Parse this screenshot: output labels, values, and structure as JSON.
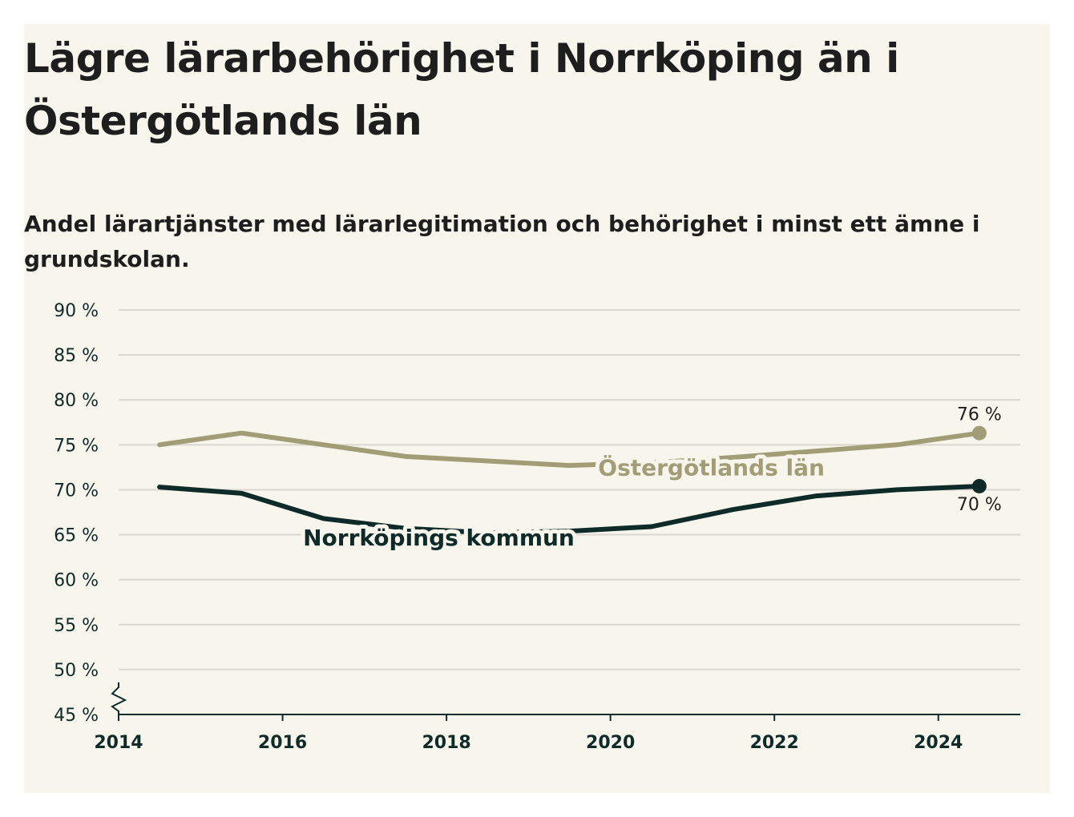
{
  "title": "Lägre lärarbehörighet i Norrköping än i Östergötlands län",
  "subtitle": "Andel lärartjänster med lärarlegitimation och behörighet i minst ett ämne i grundskolan.",
  "colors": {
    "background": "#f8f6ec",
    "grid": "#d9d7cf",
    "axis": "#0e2b2a",
    "norrkoping": "#0e2b2a",
    "ostergotland": "#a29d77"
  },
  "chart_data": {
    "type": "line",
    "xlim": [
      2014,
      2025
    ],
    "ylim": [
      45,
      90
    ],
    "y_axis_break": true,
    "x_ticks": [
      2014,
      2016,
      2018,
      2020,
      2022,
      2024
    ],
    "x_tick_labels": [
      "2014",
      "2016",
      "2018",
      "2020",
      "2022",
      "2024"
    ],
    "y_ticks": [
      45,
      50,
      55,
      60,
      65,
      70,
      75,
      80,
      85,
      90
    ],
    "y_tick_labels": [
      "45 %",
      "50 %",
      "55 %",
      "60 %",
      "65 %",
      "70 %",
      "75 %",
      "80 %",
      "85 %",
      "90 %"
    ],
    "grid": true,
    "series": [
      {
        "name": "Östergötlands län",
        "color": "#a29d77",
        "x": [
          2014.5,
          2015.5,
          2016.5,
          2017.5,
          2018.5,
          2019.5,
          2020.5,
          2021.5,
          2022.5,
          2023.5,
          2024.5
        ],
        "y": [
          75.0,
          76.3,
          75.0,
          73.7,
          73.2,
          72.7,
          73.0,
          73.6,
          74.3,
          75.0,
          76.3
        ],
        "end_label": "76 %"
      },
      {
        "name": "Norrköpings kommun",
        "color": "#0e2b2a",
        "x": [
          2014.5,
          2015.5,
          2016.5,
          2017.5,
          2018.5,
          2019.5,
          2020.5,
          2021.5,
          2022.5,
          2023.5,
          2024.5
        ],
        "y": [
          70.3,
          69.6,
          66.8,
          65.7,
          65.2,
          65.4,
          65.9,
          67.8,
          69.3,
          70.0,
          70.4
        ],
        "end_label": "70 %"
      }
    ]
  }
}
